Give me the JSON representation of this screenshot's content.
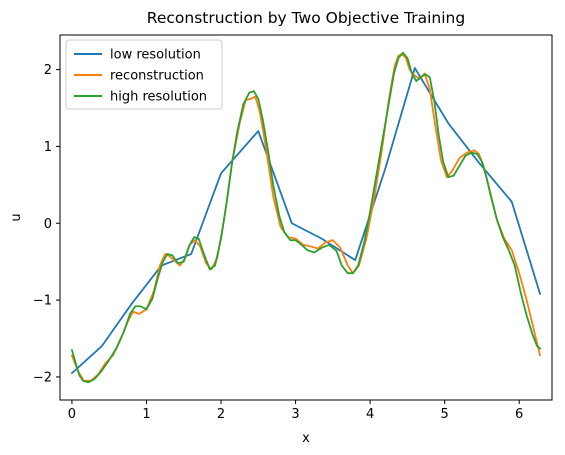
{
  "chart_data": {
    "type": "line",
    "title": "Reconstruction by Two Objective Training",
    "xlabel": "x",
    "ylabel": "u",
    "xlim": [
      -0.16,
      6.44
    ],
    "ylim": [
      -2.3,
      2.45
    ],
    "xticks": [
      0,
      1,
      2,
      3,
      4,
      5,
      6
    ],
    "yticks": [
      -2,
      -1,
      0,
      1,
      2
    ],
    "xtick_labels": [
      "0",
      "1",
      "2",
      "3",
      "4",
      "5",
      "6"
    ],
    "ytick_labels": [
      "−2",
      "−1",
      "0",
      "1",
      "2"
    ],
    "legend_position": "upper-left",
    "series": [
      {
        "name": "low resolution",
        "color": "#1f77b4",
        "x": [
          0.0,
          0.4,
          0.8,
          1.2,
          1.6,
          2.0,
          2.5,
          2.95,
          3.35,
          3.8,
          4.2,
          4.6,
          5.05,
          5.45,
          5.9,
          6.28
        ],
        "y": [
          -1.95,
          -1.6,
          -1.05,
          -0.55,
          -0.4,
          0.65,
          1.2,
          0.0,
          -0.2,
          -0.48,
          0.7,
          2.02,
          1.3,
          0.8,
          0.28,
          -0.92
        ]
      },
      {
        "name": "reconstruction",
        "color": "#ff7f0e",
        "x": [
          0.0,
          0.08,
          0.16,
          0.25,
          0.35,
          0.45,
          0.55,
          0.65,
          0.75,
          0.82,
          0.9,
          1.0,
          1.1,
          1.18,
          1.25,
          1.3,
          1.37,
          1.45,
          1.52,
          1.58,
          1.65,
          1.72,
          1.8,
          1.87,
          1.95,
          2.05,
          2.15,
          2.25,
          2.33,
          2.4,
          2.46,
          2.52,
          2.6,
          2.7,
          2.8,
          2.9,
          3.0,
          3.1,
          3.2,
          3.3,
          3.4,
          3.5,
          3.6,
          3.7,
          3.77,
          3.85,
          3.95,
          4.05,
          4.15,
          4.25,
          4.33,
          4.38,
          4.43,
          4.48,
          4.53,
          4.6,
          4.67,
          4.73,
          4.8,
          4.87,
          4.95,
          5.03,
          5.1,
          5.2,
          5.3,
          5.4,
          5.46,
          5.52,
          5.6,
          5.7,
          5.8,
          5.9,
          6.0,
          6.1,
          6.2,
          6.28
        ],
        "y": [
          -1.72,
          -1.92,
          -2.05,
          -2.05,
          -1.97,
          -1.82,
          -1.72,
          -1.52,
          -1.28,
          -1.15,
          -1.18,
          -1.12,
          -0.88,
          -0.55,
          -0.4,
          -0.42,
          -0.48,
          -0.55,
          -0.45,
          -0.28,
          -0.22,
          -0.3,
          -0.52,
          -0.6,
          -0.45,
          0.1,
          0.8,
          1.3,
          1.6,
          1.62,
          1.65,
          1.45,
          1.0,
          0.35,
          -0.05,
          -0.18,
          -0.2,
          -0.28,
          -0.3,
          -0.33,
          -0.25,
          -0.22,
          -0.32,
          -0.55,
          -0.65,
          -0.55,
          -0.2,
          0.3,
          0.9,
          1.6,
          2.05,
          2.18,
          2.2,
          2.15,
          2.0,
          1.92,
          1.88,
          1.95,
          1.75,
          1.3,
          0.82,
          0.6,
          0.68,
          0.85,
          0.92,
          0.95,
          0.9,
          0.75,
          0.45,
          0.05,
          -0.2,
          -0.35,
          -0.65,
          -1.0,
          -1.4,
          -1.72
        ]
      },
      {
        "name": "high resolution",
        "color": "#2ca02c",
        "x": [
          0.0,
          0.05,
          0.1,
          0.15,
          0.22,
          0.3,
          0.4,
          0.5,
          0.6,
          0.7,
          0.78,
          0.85,
          0.92,
          1.0,
          1.08,
          1.15,
          1.22,
          1.28,
          1.35,
          1.42,
          1.5,
          1.57,
          1.64,
          1.7,
          1.77,
          1.85,
          1.92,
          2.0,
          2.08,
          2.15,
          2.22,
          2.3,
          2.38,
          2.44,
          2.5,
          2.56,
          2.63,
          2.7,
          2.78,
          2.85,
          2.93,
          3.0,
          3.08,
          3.16,
          3.25,
          3.35,
          3.45,
          3.55,
          3.62,
          3.7,
          3.77,
          3.84,
          3.92,
          4.0,
          4.08,
          4.16,
          4.24,
          4.32,
          4.38,
          4.44,
          4.5,
          4.56,
          4.62,
          4.68,
          4.74,
          4.8,
          4.86,
          4.92,
          4.98,
          5.05,
          5.12,
          5.2,
          5.28,
          5.36,
          5.44,
          5.5,
          5.56,
          5.62,
          5.7,
          5.78,
          5.86,
          5.94,
          6.02,
          6.1,
          6.18,
          6.24,
          6.28
        ],
        "y": [
          -1.65,
          -1.82,
          -1.98,
          -2.05,
          -2.07,
          -2.03,
          -1.92,
          -1.78,
          -1.62,
          -1.4,
          -1.18,
          -1.08,
          -1.08,
          -1.12,
          -0.98,
          -0.72,
          -0.5,
          -0.4,
          -0.42,
          -0.52,
          -0.5,
          -0.3,
          -0.18,
          -0.2,
          -0.4,
          -0.6,
          -0.55,
          -0.2,
          0.3,
          0.8,
          1.2,
          1.55,
          1.7,
          1.72,
          1.62,
          1.35,
          0.95,
          0.5,
          0.1,
          -0.12,
          -0.22,
          -0.22,
          -0.28,
          -0.35,
          -0.38,
          -0.32,
          -0.28,
          -0.36,
          -0.55,
          -0.65,
          -0.65,
          -0.55,
          -0.25,
          0.15,
          0.6,
          1.05,
          1.5,
          1.95,
          2.15,
          2.22,
          2.15,
          1.95,
          1.85,
          1.9,
          1.94,
          1.9,
          1.6,
          1.15,
          0.8,
          0.6,
          0.62,
          0.75,
          0.88,
          0.92,
          0.9,
          0.8,
          0.6,
          0.35,
          0.05,
          -0.18,
          -0.35,
          -0.55,
          -0.9,
          -1.2,
          -1.45,
          -1.6,
          -1.63
        ]
      }
    ]
  }
}
